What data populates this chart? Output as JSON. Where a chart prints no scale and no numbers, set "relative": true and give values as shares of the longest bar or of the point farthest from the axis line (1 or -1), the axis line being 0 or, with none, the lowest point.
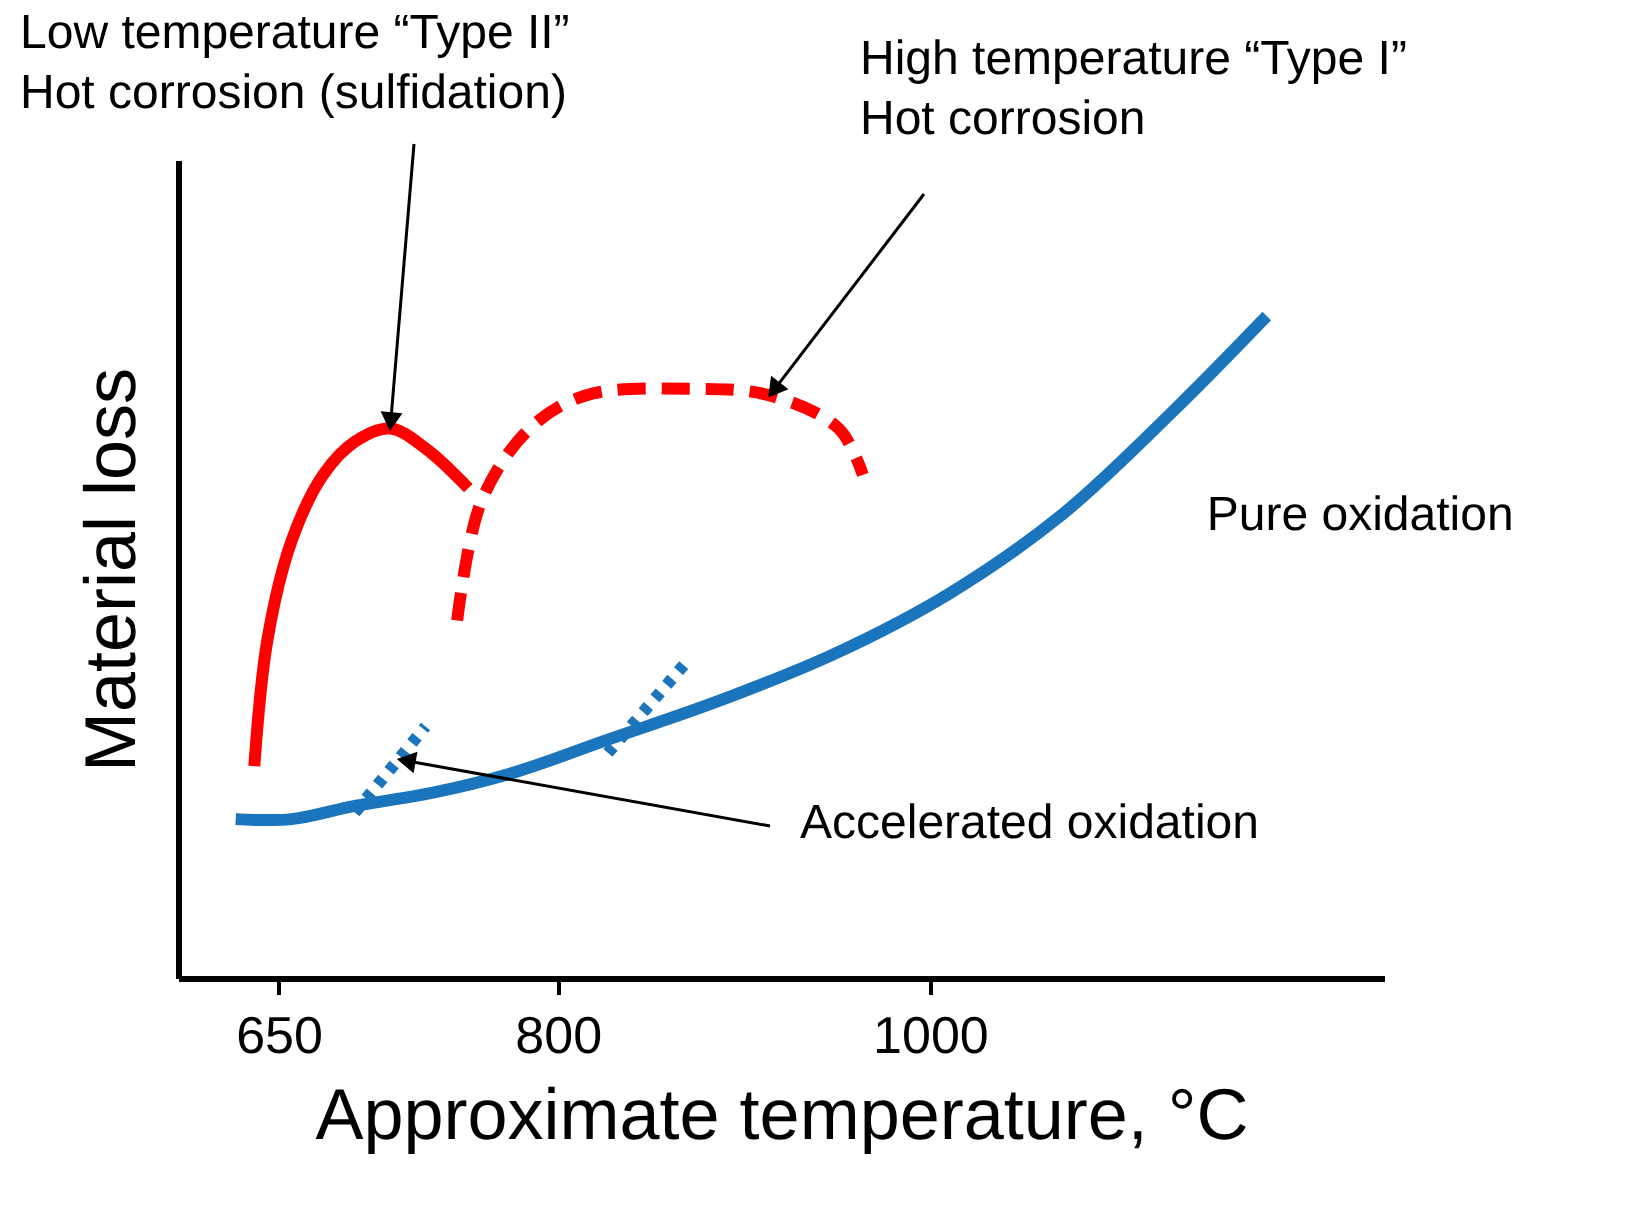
{
  "chart_data": {
    "type": "line",
    "relative": true,
    "xlabel": "Approximate temperature, °C",
    "ylabel": "Material loss",
    "xlim": [
      596,
      1244
    ],
    "xticks": [
      650,
      800,
      1000
    ],
    "grid": false,
    "legend": false,
    "series": [
      {
        "name": "Pure oxidation",
        "color": "#1b75bc",
        "line_style": "solid",
        "x": [
          627,
          657,
          691,
          733,
          776,
          827,
          888,
          949,
          1010,
          1071,
          1132,
          1181
        ],
        "values": [
          0.24,
          0.24,
          0.26,
          0.28,
          0.31,
          0.36,
          0.42,
          0.49,
          0.58,
          0.7,
          0.86,
          1.0
        ]
      },
      {
        "color": "#ff0000",
        "line_style": "solid",
        "x": [
          637,
          644,
          657,
          674,
          691,
          710,
          729,
          752
        ],
        "values": [
          0.32,
          0.51,
          0.66,
          0.76,
          0.81,
          0.83,
          0.8,
          0.74
        ]
      },
      {
        "color": "#ff0000",
        "line_style": "dashed",
        "x": [
          746,
          759,
          785,
          815,
          872,
          914,
          951,
          964
        ],
        "values": [
          0.54,
          0.72,
          0.83,
          0.88,
          0.89,
          0.88,
          0.83,
          0.76
        ]
      },
      {
        "color": "#1b75bc",
        "line_style": "dotted",
        "x": [
          691,
          729
        ],
        "values": [
          0.25,
          0.38
        ]
      },
      {
        "color": "#1b75bc",
        "line_style": "dotted",
        "x": [
          827,
          870
        ],
        "values": [
          0.34,
          0.48
        ]
      }
    ],
    "annotations": [
      {
        "text": "Low temperature “Type II”\nHot corrosion (sulfidation)",
        "x": 710,
        "y": 0.83
      },
      {
        "text": "High temperature “Type I”\nHot corrosion",
        "x": 914,
        "y": 0.88
      },
      {
        "text": "Accelerated oxidation",
        "x": 715,
        "y": 0.33
      }
    ]
  }
}
